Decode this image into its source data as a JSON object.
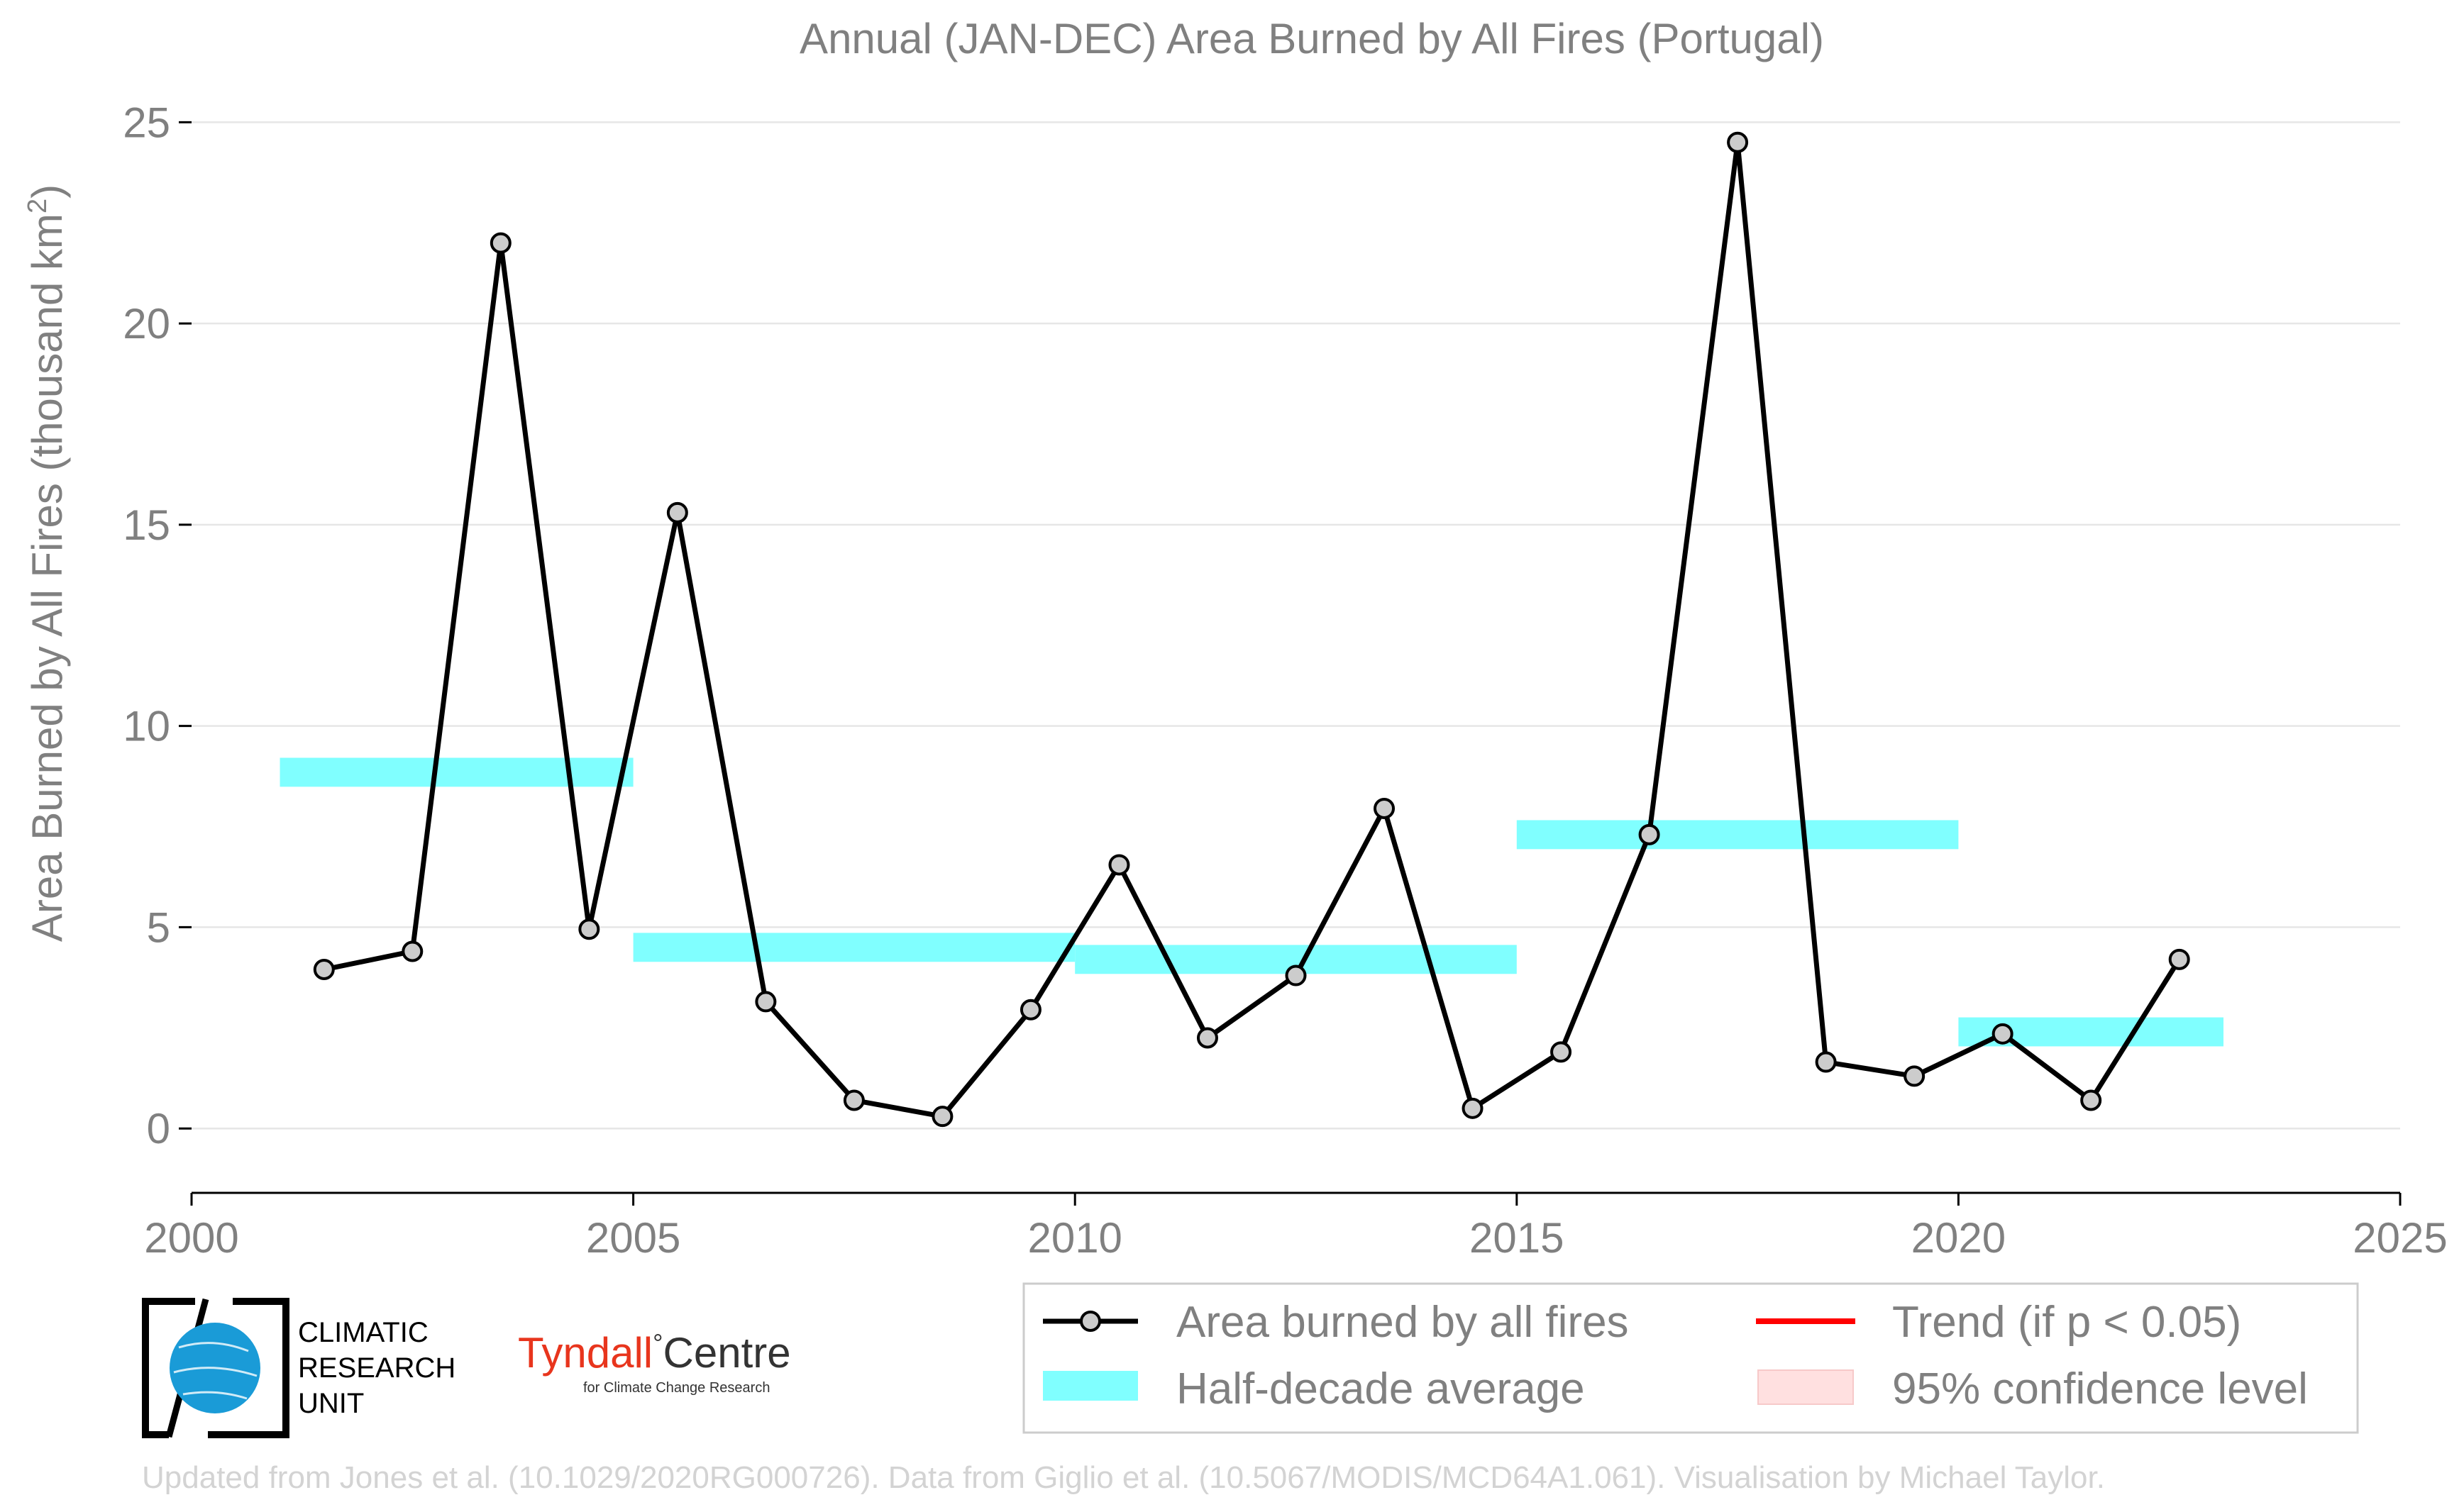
{
  "chart_data": {
    "type": "line",
    "title": "Annual (JAN-DEC) Area Burned by All Fires (Portugal)",
    "ylabel_text": "Area Burned by All Fires (thousand km",
    "ylabel_sup": "2",
    "ylabel_close": ")",
    "xlim": [
      2000,
      2025
    ],
    "ylim": [
      -1.6,
      25.5
    ],
    "x_ticks": [
      2000,
      2005,
      2010,
      2015,
      2020,
      2025
    ],
    "y_ticks": [
      0,
      5,
      10,
      15,
      20,
      25
    ],
    "grid": true,
    "series": [
      {
        "name": "Area burned by all fires",
        "color": "#000000",
        "marker_color": "#cccccc",
        "x": [
          2001.5,
          2002.5,
          2003.5,
          2004.5,
          2005.5,
          2006.5,
          2007.5,
          2008.5,
          2009.5,
          2010.5,
          2011.5,
          2012.5,
          2013.5,
          2014.5,
          2015.5,
          2016.5,
          2017.5,
          2018.5,
          2019.5,
          2020.5,
          2021.5,
          2022.5
        ],
        "values": [
          3.95,
          4.4,
          22.0,
          4.95,
          15.3,
          3.15,
          0.7,
          0.3,
          2.95,
          6.55,
          2.25,
          3.8,
          7.95,
          0.5,
          1.9,
          7.3,
          24.5,
          1.65,
          1.3,
          2.35,
          0.7,
          4.2
        ]
      }
    ],
    "half_decade_average": {
      "name": "Half-decade average",
      "color": "#80ffff",
      "segments": [
        {
          "x_start": 2001,
          "x_end": 2005,
          "value": 8.85
        },
        {
          "x_start": 2005,
          "x_end": 2010,
          "value": 4.5
        },
        {
          "x_start": 2010,
          "x_end": 2015,
          "value": 4.2
        },
        {
          "x_start": 2015,
          "x_end": 2020,
          "value": 7.3
        },
        {
          "x_start": 2020,
          "x_end": 2023,
          "value": 2.4
        }
      ]
    },
    "legend": {
      "placement": "bottom-right",
      "items": {
        "series": "Area burned by all fires",
        "average": "Half-decade average",
        "trend": "Trend (if p < 0.05)",
        "confidence": "95% confidence level"
      },
      "trend_color": "#ff0000",
      "confidence_color": "#ffe0e0"
    }
  },
  "logos": {
    "cru_lines": [
      "CLIMATIC",
      "RESEARCH",
      "UNIT"
    ],
    "tyndall_main": "Tyndall",
    "tyndall_degree": "°",
    "tyndall_centre": "Centre",
    "tyndall_sub": "for Climate Change Research"
  },
  "footer": "Updated from Jones et al. (10.1029/2020RG000726). Data from Giglio et al. (10.5067/MODIS/MCD64A1.061). Visualisation by Michael Taylor."
}
